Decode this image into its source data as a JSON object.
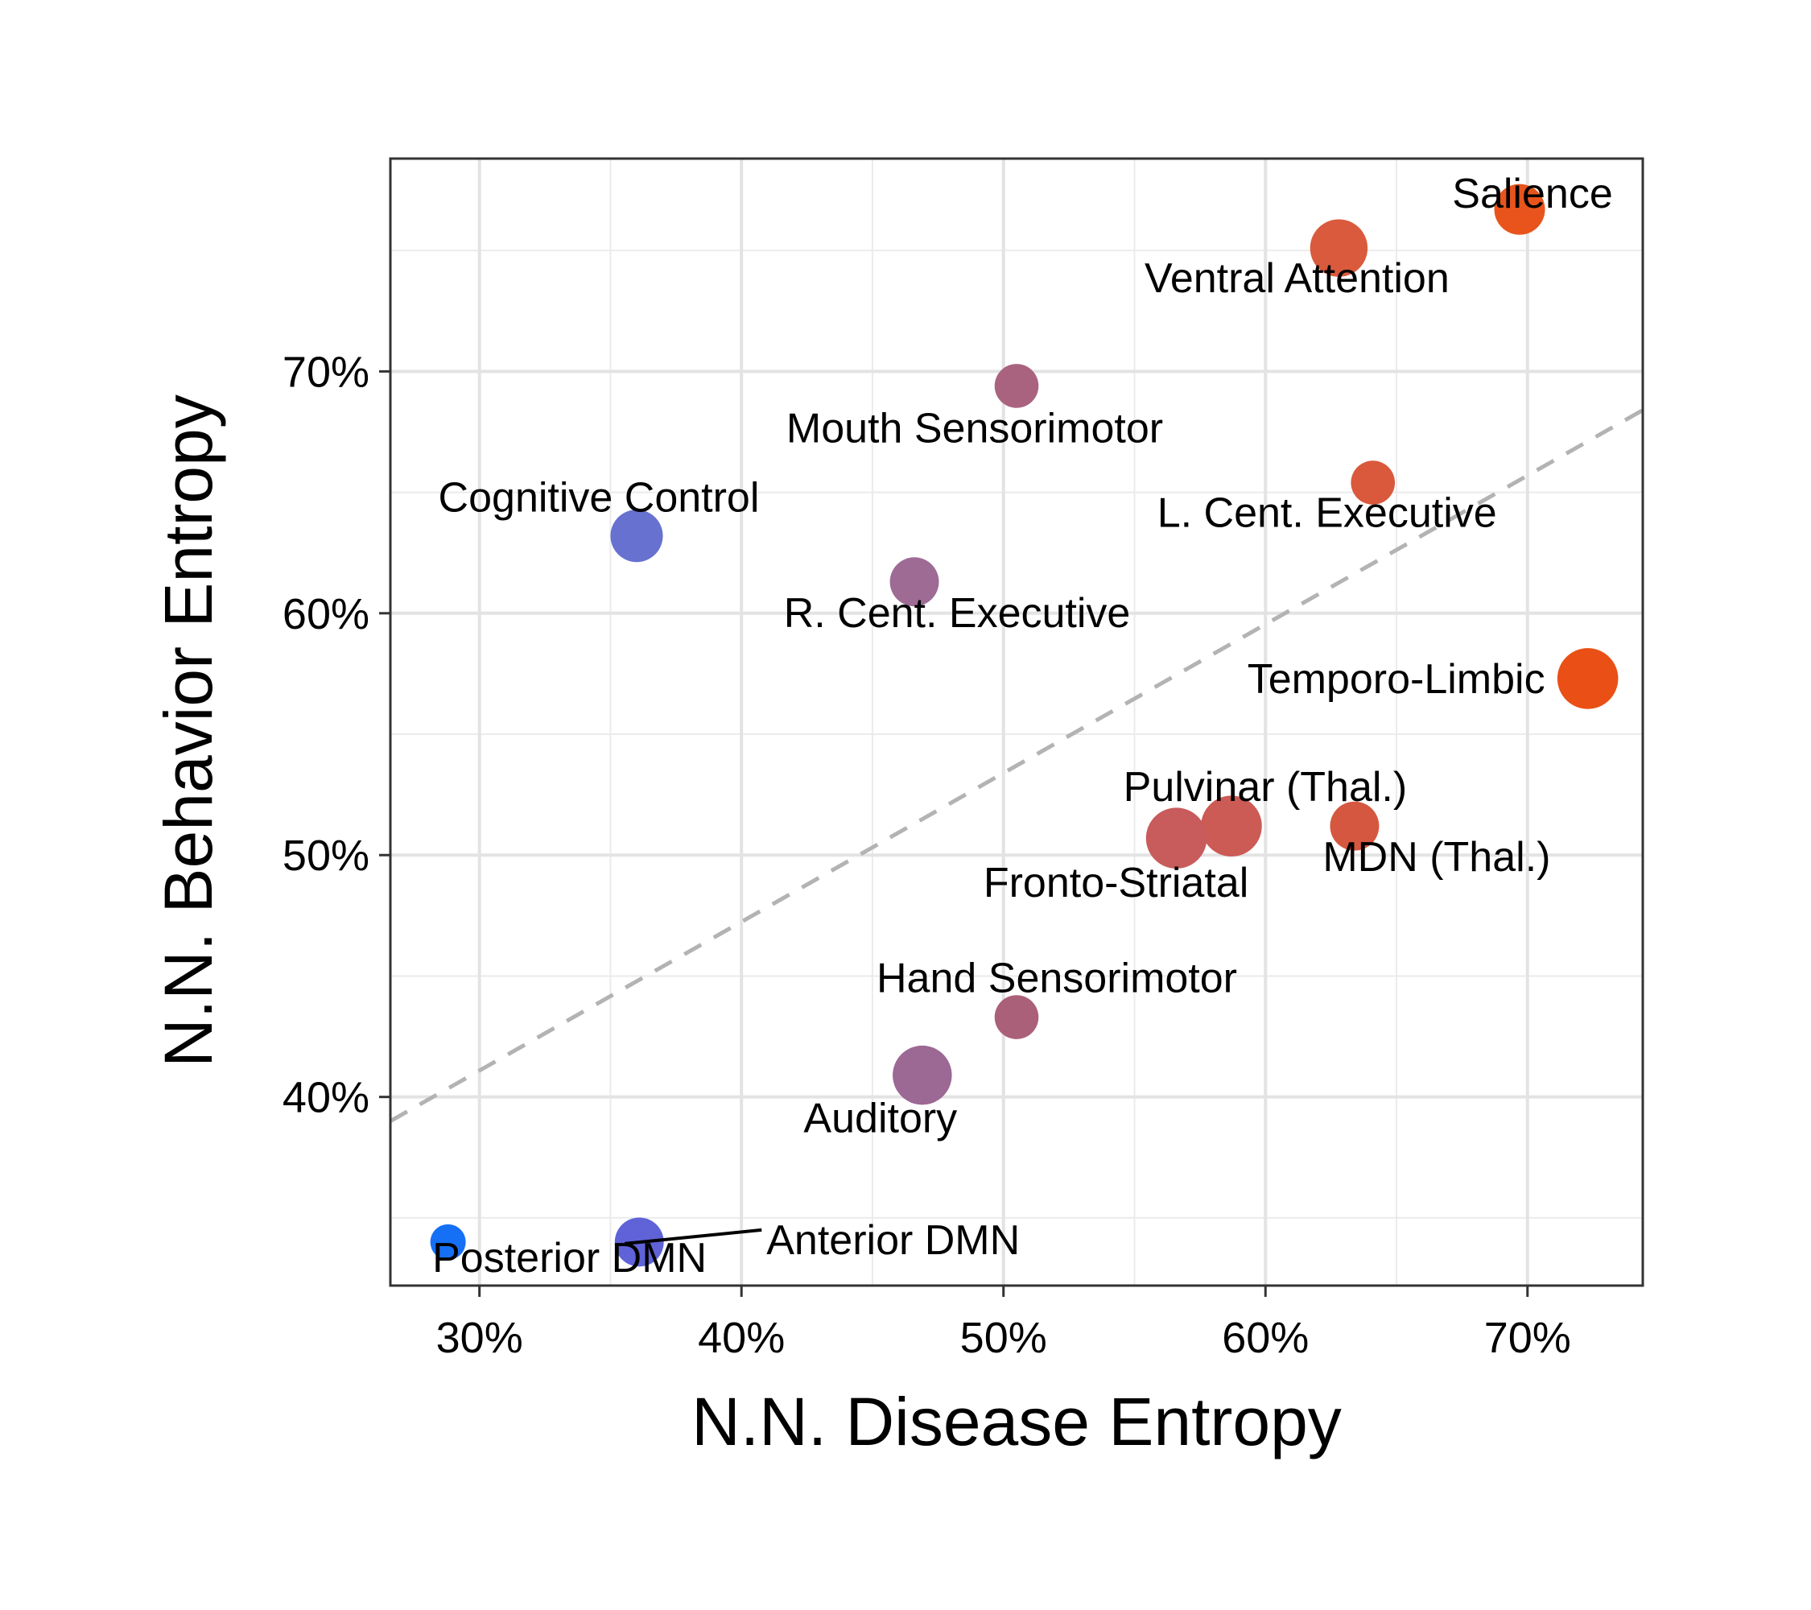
{
  "chart_data": {
    "type": "scatter",
    "title": "",
    "xlabel": "N.N. Disease Entropy",
    "ylabel": "N.N. Behavior Entropy",
    "xlim": [
      26.6,
      74.4
    ],
    "ylim": [
      32.2,
      78.8
    ],
    "x_ticks": [
      30,
      40,
      50,
      60,
      70
    ],
    "x_tick_labels": [
      "30%",
      "40%",
      "50%",
      "60%",
      "70%"
    ],
    "y_ticks": [
      40,
      50,
      60,
      70
    ],
    "y_tick_labels": [
      "40%",
      "50%",
      "60%",
      "70%"
    ],
    "grid": true,
    "legend": "none",
    "reference_line": {
      "style": "dashed",
      "x": [
        26.6,
        74.4
      ],
      "y": [
        39.0,
        68.4
      ],
      "color": "#b3b3b3"
    },
    "points": [
      {
        "name": "Salience",
        "x": 69.7,
        "y": 76.7,
        "size": 3.0,
        "color": "#e8541c"
      },
      {
        "name": "Ventral Attention",
        "x": 62.8,
        "y": 75.1,
        "size": 3.4,
        "color": "#d95a3c"
      },
      {
        "name": "Mouth Sensorimotor",
        "x": 50.5,
        "y": 69.4,
        "size": 2.6,
        "color": "#a9637e"
      },
      {
        "name": "L. Cent. Executive",
        "x": 64.1,
        "y": 65.4,
        "size": 2.6,
        "color": "#da583c"
      },
      {
        "name": "Cognitive Control",
        "x": 36.0,
        "y": 63.2,
        "size": 3.1,
        "color": "#6671d0"
      },
      {
        "name": "R. Cent. Executive",
        "x": 46.6,
        "y": 61.3,
        "size": 2.9,
        "color": "#9e6b95"
      },
      {
        "name": "Temporo-Limbic",
        "x": 72.3,
        "y": 57.3,
        "size": 3.6,
        "color": "#ea5015"
      },
      {
        "name": "Pulvinar (Thal.)",
        "x": 58.7,
        "y": 51.2,
        "size": 3.6,
        "color": "#cc5a55"
      },
      {
        "name": "Fronto-Striatal",
        "x": 56.6,
        "y": 50.7,
        "size": 3.6,
        "color": "#c85b5b"
      },
      {
        "name": "MDN (Thal.)",
        "x": 63.4,
        "y": 51.2,
        "size": 2.9,
        "color": "#d6573f"
      },
      {
        "name": "Hand Sensorimotor",
        "x": 50.5,
        "y": 43.3,
        "size": 2.6,
        "color": "#ab6079"
      },
      {
        "name": "Auditory",
        "x": 46.9,
        "y": 40.9,
        "size": 3.5,
        "color": "#9c6894"
      },
      {
        "name": "Posterior DMN",
        "x": 28.8,
        "y": 34.0,
        "size": 2.1,
        "color": "#1670f5"
      },
      {
        "name": "Anterior DMN",
        "x": 36.1,
        "y": 34.0,
        "size": 2.9,
        "color": "#5f63d7"
      }
    ]
  }
}
